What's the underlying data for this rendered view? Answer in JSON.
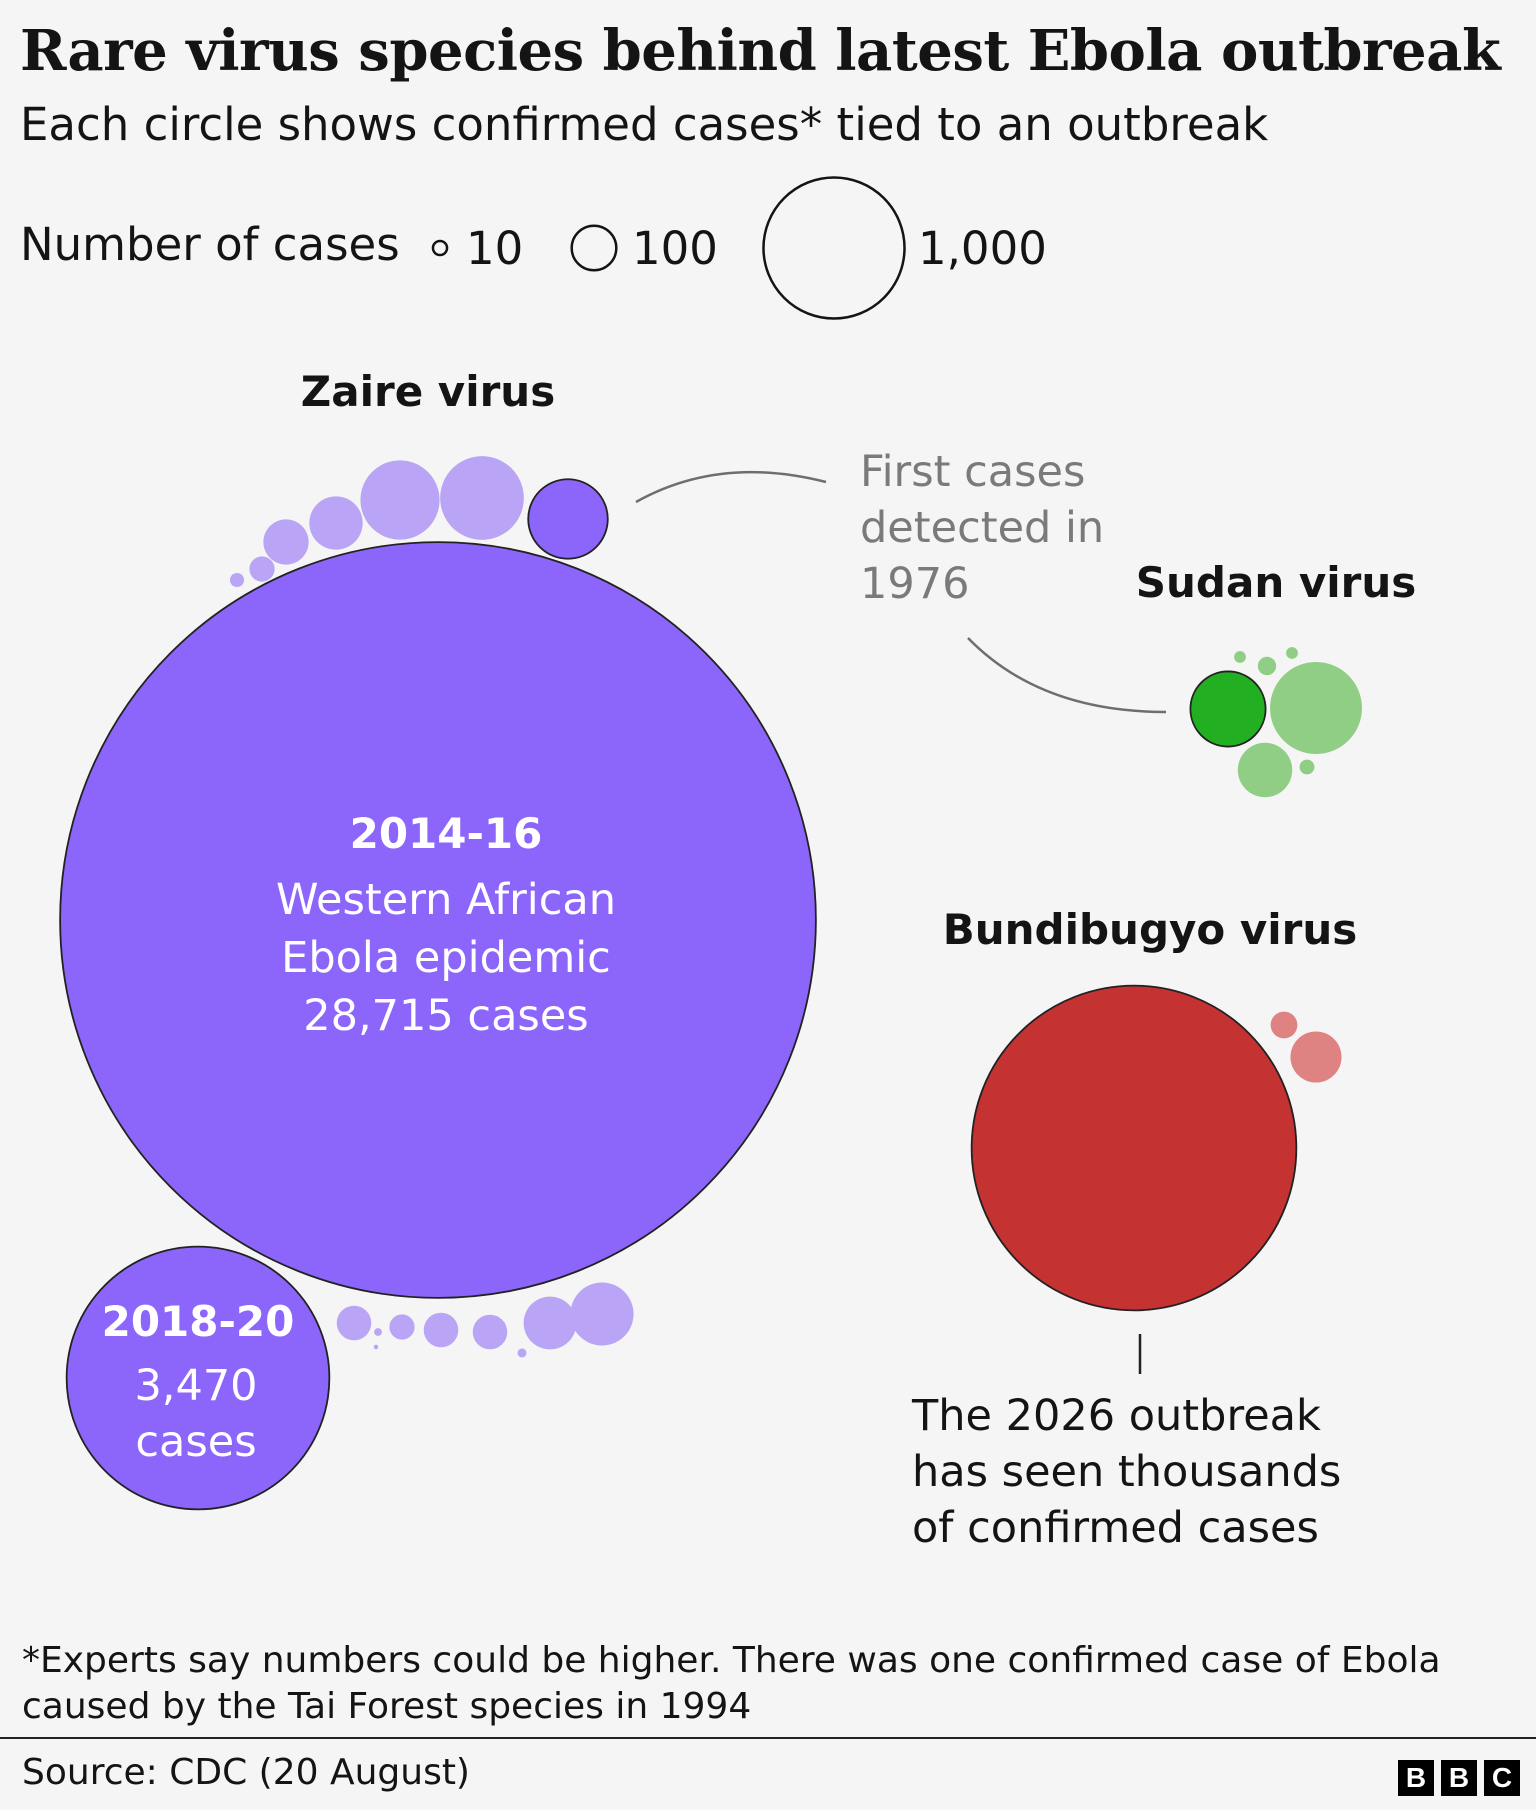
{
  "title": "Rare virus species behind latest Ebola outbreak",
  "subtitle": "Each circle shows confirmed cases* tied to an outbreak",
  "footnote": "*Experts say numbers could be higher. There was one confirmed case of Ebola caused by the Tai Forest species in 1994",
  "source": "Source: CDC (20 August)",
  "logo": [
    "B",
    "B",
    "C"
  ],
  "chart_data": {
    "type": "bubble",
    "size_legend": {
      "label": "Number of cases",
      "entries": [
        {
          "value": 10,
          "label": "10"
        },
        {
          "value": 100,
          "label": "100"
        },
        {
          "value": 1000,
          "label": "1,000"
        }
      ]
    },
    "groups": [
      {
        "name": "Zaire virus",
        "color": "#8c66fa",
        "light_color": "#b9a4f5",
        "outbreaks": [
          {
            "label_year": "2014-16",
            "label_text": [
              "Western African",
              "Ebola epidemic",
              "28,715 cases"
            ],
            "cases": 28715
          },
          {
            "label_year": "2018-20",
            "label_text": [
              "3,470",
              "cases"
            ],
            "cases": 3470
          },
          {
            "note": "first 1976",
            "cases": 318
          },
          {
            "cases": 352
          },
          {
            "cases": 315
          },
          {
            "cases": 143
          },
          {
            "cases": 103
          },
          {
            "cases": 32
          },
          {
            "cases": 10
          },
          {
            "cases": 60
          },
          {
            "cases": 32
          },
          {
            "cases": 3
          },
          {
            "cases": 1
          },
          {
            "cases": 60
          },
          {
            "cases": 60
          },
          {
            "cases": 140
          },
          {
            "cases": 4
          },
          {
            "cases": 200
          }
        ],
        "annotation": [
          "First cases",
          "detected in",
          "1976"
        ]
      },
      {
        "name": "Sudan virus",
        "color": "#22b022",
        "light_color": "#8fce84",
        "outbreaks": [
          {
            "note": "first 1976",
            "cases": 284
          },
          {
            "cases": 425
          },
          {
            "cases": 149
          },
          {
            "cases": 17
          },
          {
            "cases": 7
          },
          {
            "cases": 7
          },
          {
            "cases": 11
          }
        ]
      },
      {
        "name": "Bundibugyo virus",
        "color": "#c43232",
        "light_color": "#de8282",
        "outbreaks": [
          {
            "note": "2026",
            "cases": 5300
          },
          {
            "cases": 131
          },
          {
            "cases": 36
          }
        ],
        "annotation": [
          "The 2026 outbreak",
          "has seen thousands",
          "of confirmed cases"
        ]
      }
    ]
  }
}
